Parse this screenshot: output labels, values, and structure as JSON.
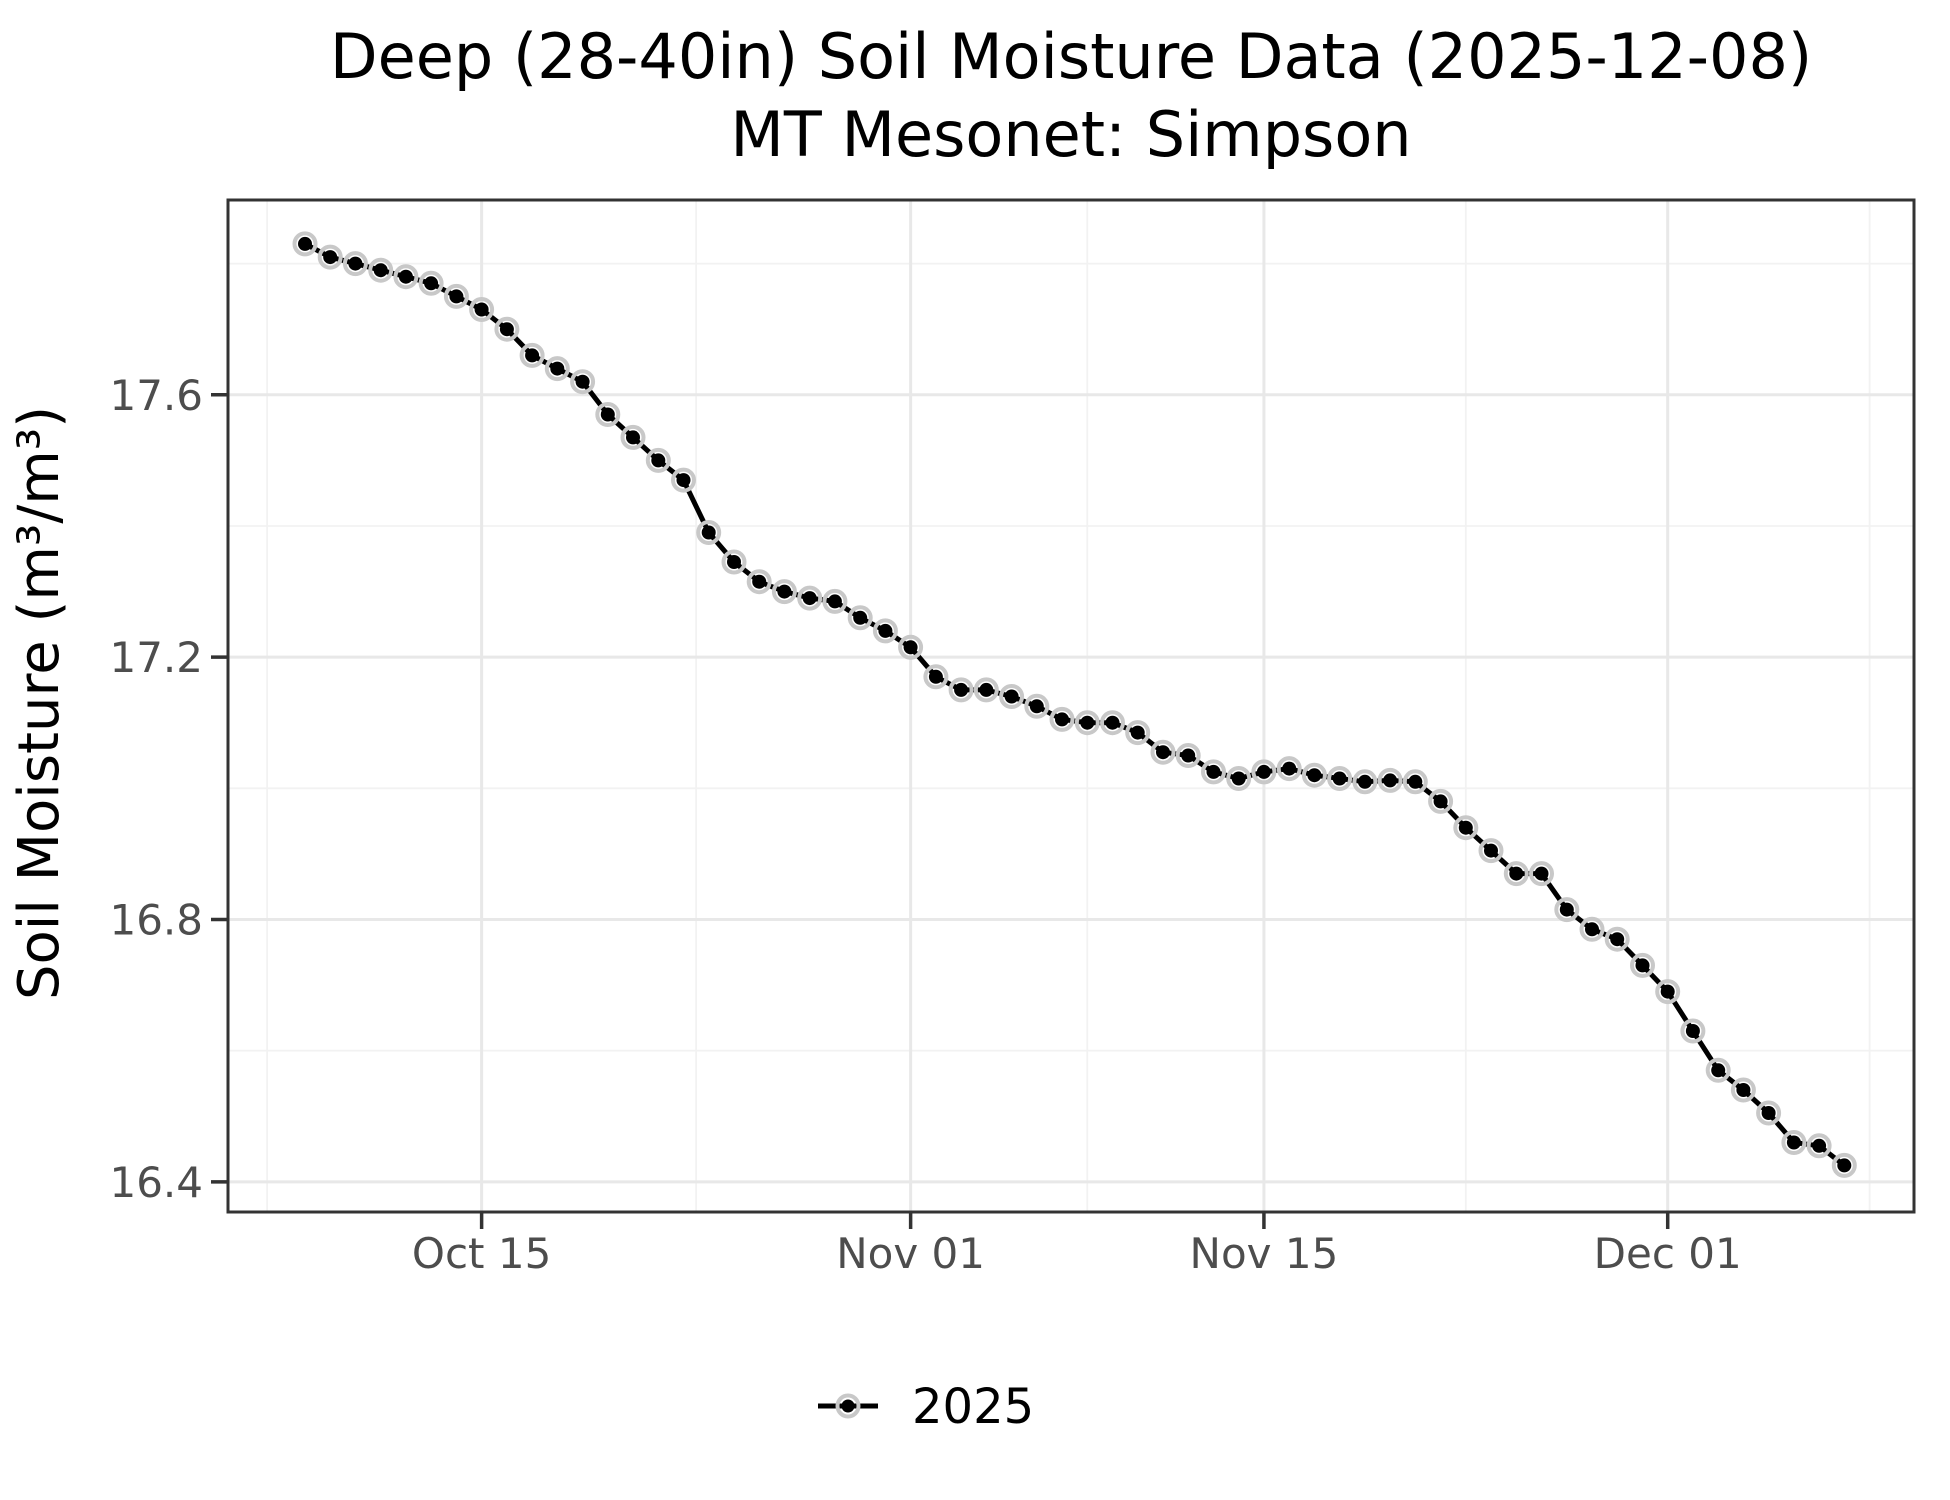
{
  "title": "Deep (28-40in) Soil Moisture Data (2025-12-08)",
  "subtitle": "MT Mesonet: Simpson",
  "legend": {
    "items": [
      {
        "label": "2025",
        "line_color": "#000000",
        "marker_color": "#000000",
        "marker_halo_color": "#c8c8c8"
      }
    ]
  },
  "chart_data": {
    "type": "line",
    "title": "Deep (28-40in) Soil Moisture Data (2025-12-08)",
    "subtitle": "MT Mesonet: Simpson",
    "xlabel": "",
    "ylabel": "Soil Moisture (m³/m³)",
    "grid": true,
    "legend_position": "bottom",
    "x": [
      "Oct 08",
      "Oct 09",
      "Oct 10",
      "Oct 11",
      "Oct 12",
      "Oct 13",
      "Oct 14",
      "Oct 15",
      "Oct 16",
      "Oct 17",
      "Oct 18",
      "Oct 19",
      "Oct 20",
      "Oct 21",
      "Oct 22",
      "Oct 23",
      "Oct 24",
      "Oct 25",
      "Oct 26",
      "Oct 27",
      "Oct 28",
      "Oct 29",
      "Oct 30",
      "Oct 31",
      "Nov 01",
      "Nov 02",
      "Nov 03",
      "Nov 04",
      "Nov 05",
      "Nov 06",
      "Nov 07",
      "Nov 08",
      "Nov 09",
      "Nov 10",
      "Nov 11",
      "Nov 12",
      "Nov 13",
      "Nov 14",
      "Nov 15",
      "Nov 16",
      "Nov 17",
      "Nov 18",
      "Nov 19",
      "Nov 20",
      "Nov 21",
      "Nov 22",
      "Nov 23",
      "Nov 24",
      "Nov 25",
      "Nov 26",
      "Nov 27",
      "Nov 28",
      "Nov 29",
      "Nov 30",
      "Dec 01",
      "Dec 02",
      "Dec 03",
      "Dec 04",
      "Dec 05",
      "Dec 06",
      "Dec 07",
      "Dec 08"
    ],
    "series": [
      {
        "name": "2025",
        "color": "#000000",
        "marker_halo": "#c8c8c8",
        "values": [
          17.83,
          17.81,
          17.8,
          17.79,
          17.78,
          17.77,
          17.75,
          17.73,
          17.7,
          17.66,
          17.64,
          17.62,
          17.57,
          17.535,
          17.5,
          17.47,
          17.39,
          17.345,
          17.315,
          17.3,
          17.29,
          17.285,
          17.26,
          17.24,
          17.215,
          17.17,
          17.15,
          17.15,
          17.14,
          17.125,
          17.105,
          17.1,
          17.1,
          17.085,
          17.055,
          17.05,
          17.025,
          17.015,
          17.025,
          17.03,
          17.02,
          17.015,
          17.01,
          17.012,
          17.01,
          16.98,
          16.94,
          16.905,
          16.87,
          16.87,
          16.815,
          16.785,
          16.77,
          16.73,
          16.69,
          16.63,
          16.57,
          16.54,
          16.505,
          16.46,
          16.455,
          16.425
        ]
      }
    ],
    "x_ticks": [
      {
        "label": "Oct 15",
        "day": 7
      },
      {
        "label": "Nov 01",
        "day": 24
      },
      {
        "label": "Nov 15",
        "day": 38
      },
      {
        "label": "Dec 01",
        "day": 54
      }
    ],
    "x_minor_days": [
      -1.5,
      15.5,
      31,
      46,
      62
    ],
    "x_domain_days": [
      -3.05,
      63.76
    ],
    "y_ticks": [
      {
        "label": "17.6",
        "value": 17.6
      },
      {
        "label": "17.2",
        "value": 17.2
      },
      {
        "label": "16.8",
        "value": 16.8
      },
      {
        "label": "16.4",
        "value": 16.4
      }
    ],
    "y_minor": [
      17.8,
      17.4,
      17.0,
      16.6
    ],
    "ylim": [
      16.354,
      17.897
    ],
    "colors": {
      "panel_border": "#333333",
      "tick_mark": "#333333",
      "grid_major": "#e8e8e8",
      "grid_minor": "#f2f2f2",
      "axis_text": "#4d4d4d",
      "background": "#ffffff"
    }
  }
}
